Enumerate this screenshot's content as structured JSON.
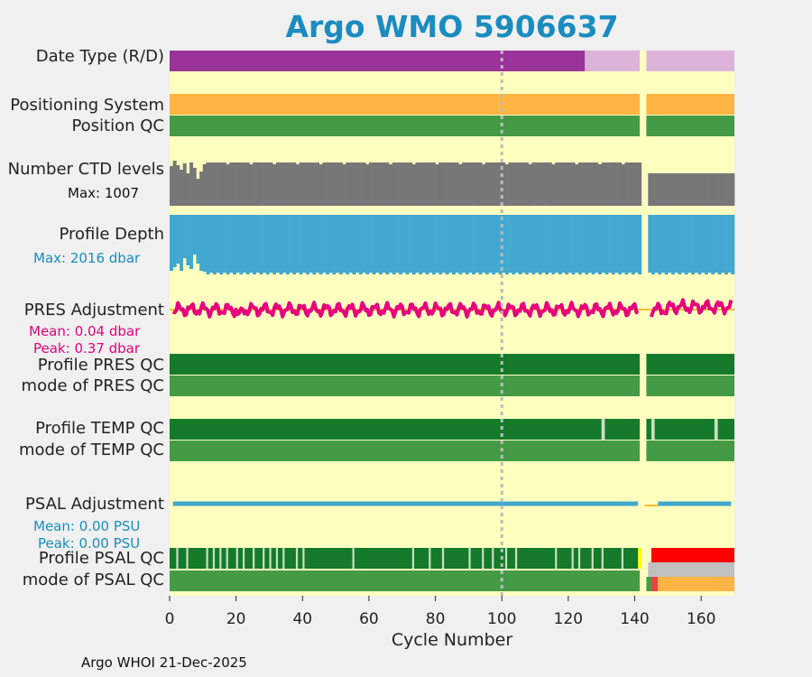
{
  "title": "Argo WMO 5906637",
  "footer": "Argo WHOI 21-Dec-2025",
  "labels": {
    "date_type": "Date Type (R/D)",
    "positioning": "Positioning System",
    "position_qc": "Position QC",
    "ctd_levels": "Number CTD levels",
    "ctd_max": "Max: 1007",
    "profile_depth": "Profile Depth",
    "depth_max": "Max: 2016 dbar",
    "pres_adj": "PRES Adjustment",
    "pres_mean": "Mean: 0.04 dbar",
    "pres_peak": "Peak: 0.37 dbar",
    "profile_pres_qc": "Profile PRES QC",
    "mode_pres_qc": "mode of PRES QC",
    "profile_temp_qc": "Profile TEMP QC",
    "mode_temp_qc": "mode of TEMP QC",
    "psal_adj": "PSAL Adjustment",
    "psal_mean": "Mean: 0.00 PSU",
    "psal_peak": "Peak: 0.00 PSU",
    "profile_psal_qc": "Profile PSAL QC",
    "mode_psal_qc": "mode of PSAL QC"
  },
  "colors": {
    "background": "#ffffc0",
    "date_delayed": "#993399",
    "date_realtime": "#ddb4d9",
    "positioning": "#ffb444",
    "qc_good": "#459a45",
    "profile_qc_a": "#157a2a",
    "ctd": "#777777",
    "depth": "#42a8cf",
    "pres_line": "#e6007e",
    "pres_ref": "#ffa500",
    "psal_line": "#42a8cf",
    "red": "#ff0000",
    "grey": "#c0c0c0",
    "yellow": "#ffff00",
    "title": "#1a8cbf"
  },
  "chart_data": {
    "type": "timeline",
    "title": "Argo WMO 5906637",
    "xlabel": "Cycle Number",
    "xlim": [
      0,
      170
    ],
    "xticks": [
      0,
      20,
      40,
      60,
      80,
      100,
      120,
      140,
      160
    ],
    "reference_line_cycle": 100,
    "missing_cycles": [
      142,
      143
    ],
    "series": [
      {
        "name": "Date Type (R/D)",
        "segments": [
          {
            "from": 0,
            "to": 125,
            "value": "D"
          },
          {
            "from": 125,
            "to": 170,
            "value": "R"
          }
        ]
      },
      {
        "name": "Positioning System",
        "segments": [
          {
            "from": 0,
            "to": 170,
            "value": "GPS"
          }
        ]
      },
      {
        "name": "Position QC",
        "segments": [
          {
            "from": 0,
            "to": 170,
            "value": 1
          }
        ]
      },
      {
        "name": "Number CTD levels",
        "max": 1007,
        "typical_before_gap": 1000,
        "typical_after_gap": 780
      },
      {
        "name": "Profile Depth",
        "max_dbar": 2016,
        "typical_dbar": 2000
      },
      {
        "name": "PRES Adjustment",
        "unit": "dbar",
        "mean": 0.04,
        "peak": 0.37
      },
      {
        "name": "Profile PRES QC",
        "value": "A"
      },
      {
        "name": "mode of PRES QC",
        "value": 1
      },
      {
        "name": "Profile TEMP QC",
        "value": "A",
        "flagged_cycles": [
          130,
          145,
          164
        ]
      },
      {
        "name": "mode of TEMP QC",
        "value": 1
      },
      {
        "name": "PSAL Adjustment",
        "unit": "PSU",
        "mean": 0.0,
        "peak": 0.0
      },
      {
        "name": "Profile PSAL QC",
        "value": "A",
        "red_from_cycle": 145
      },
      {
        "name": "mode of PSAL QC",
        "value": 1,
        "changed_from_cycle": 145
      }
    ]
  }
}
